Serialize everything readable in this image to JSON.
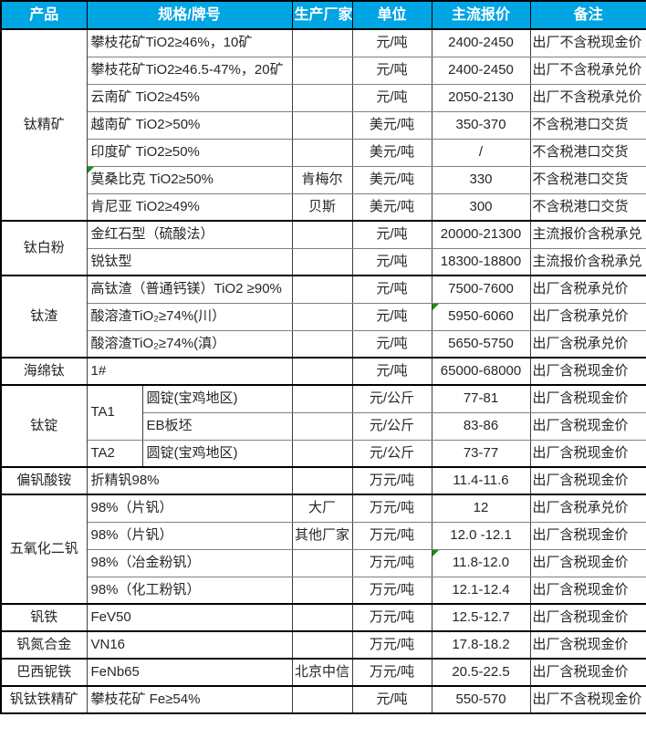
{
  "colors": {
    "header_bg": "#00A5E3",
    "header_text": "#FFFFFF",
    "marker_green": "#149414",
    "grid_strong": "#000000",
    "grid_light": "#7F7F7F",
    "text": "#262626"
  },
  "table": {
    "columns": [
      "产品",
      "规格/牌号",
      "生产厂家",
      "单位",
      "主流报价",
      "备注"
    ],
    "groups": [
      {
        "product": "钛精矿",
        "rows": [
          {
            "spec": "攀枝花矿TiO2≥46%，10矿",
            "maker": "",
            "unit": "元/吨",
            "price": "2400-2450",
            "note": "出厂不含税现金价"
          },
          {
            "spec": "攀枝花矿TiO2≥46.5-47%，20矿",
            "maker": "",
            "unit": "元/吨",
            "price": "2400-2450",
            "note": "出厂不含税承兑价"
          },
          {
            "spec": "云南矿 TiO2≥45%",
            "maker": "",
            "unit": "元/吨",
            "price": "2050-2130",
            "note": "出厂不含税承兑价"
          },
          {
            "spec": "越南矿 TiO2>50%",
            "maker": "",
            "unit": "美元/吨",
            "price": "350-370",
            "note": "不含税港口交货"
          },
          {
            "spec": "印度矿 TiO2≥50%",
            "maker": "",
            "unit": "美元/吨",
            "price": "/",
            "note": "不含税港口交货"
          },
          {
            "spec": "莫桑比克 TiO2≥50%",
            "maker": "肯梅尔",
            "unit": "美元/吨",
            "price": "330",
            "note": "不含税港口交货",
            "spec_marker": true
          },
          {
            "spec": "肯尼亚 TiO2≥49%",
            "maker": "贝斯",
            "unit": "美元/吨",
            "price": "300",
            "note": "不含税港口交货"
          }
        ]
      },
      {
        "product": "钛白粉",
        "rows": [
          {
            "spec": "金红石型（硫酸法）",
            "maker": "",
            "unit": "元/吨",
            "price": "20000-21300",
            "note": "主流报价含税承兑"
          },
          {
            "spec": "锐钛型",
            "maker": "",
            "unit": "元/吨",
            "price": "18300-18800",
            "note": "主流报价含税承兑"
          }
        ]
      },
      {
        "product": "钛渣",
        "rows": [
          {
            "spec": "高钛渣（普通钙镁）TiO2 ≥90%",
            "maker": "",
            "unit": "元/吨",
            "price": "7500-7600",
            "note": "出厂含税承兑价"
          },
          {
            "spec": "酸溶渣TiO₂≥74%(川）",
            "maker": "",
            "unit": "元/吨",
            "price": "5950-6060",
            "note": "出厂含税承兑价",
            "price_marker": true
          },
          {
            "spec": "酸溶渣TiO₂≥74%(滇）",
            "maker": "",
            "unit": "元/吨",
            "price": "5650-5750",
            "note": "出厂含税承兑价"
          }
        ]
      },
      {
        "product": "海绵钛",
        "rows": [
          {
            "spec": "1#",
            "maker": "",
            "unit": "元/吨",
            "price": "65000-68000",
            "note": "出厂含税现金价"
          }
        ]
      },
      {
        "product": "钛锭",
        "rows": [
          {
            "spec_group": "TA1",
            "spec_group_rowspan": 2,
            "spec": "圆锭(宝鸡地区)",
            "maker": "",
            "unit": "元/公斤",
            "price": "77-81",
            "note": "出厂含税现金价"
          },
          {
            "in_split": true,
            "spec": "EB板坯",
            "maker": "",
            "unit": "元/公斤",
            "price": "83-86",
            "note": "出厂含税现金价"
          },
          {
            "spec_group": "TA2",
            "spec_group_rowspan": 1,
            "spec": "圆锭(宝鸡地区)",
            "maker": "",
            "unit": "元/公斤",
            "price": "73-77",
            "note": "出厂含税现金价"
          }
        ]
      },
      {
        "product": "偏钒酸铵",
        "rows": [
          {
            "spec": "折精钒98%",
            "maker": "",
            "unit": "万元/吨",
            "price": "11.4-11.6",
            "note": "出厂含税现金价"
          }
        ]
      },
      {
        "product": "五氧化二钒",
        "rows": [
          {
            "spec": "98%（片钒）",
            "maker": "大厂",
            "unit": "万元/吨",
            "price": "12",
            "note": "出厂含税承兑价"
          },
          {
            "spec": "98%（片钒）",
            "maker": "其他厂家",
            "unit": "万元/吨",
            "price": "12.0 -12.1",
            "note": "出厂含税现金价"
          },
          {
            "spec": "98%（冶金粉钒）",
            "maker": "",
            "unit": "万元/吨",
            "price": "11.8-12.0",
            "note": "出厂含税现金价",
            "price_marker": true
          },
          {
            "spec": "98%（化工粉钒）",
            "maker": "",
            "unit": "万元/吨",
            "price": "12.1-12.4",
            "note": "出厂含税现金价"
          }
        ]
      },
      {
        "product": "钒铁",
        "rows": [
          {
            "spec": "FeV50",
            "maker": "",
            "unit": "万元/吨",
            "price": "12.5-12.7",
            "note": "出厂含税现金价"
          }
        ]
      },
      {
        "product": "钒氮合金",
        "rows": [
          {
            "spec": "VN16",
            "maker": "",
            "unit": "万元/吨",
            "price": "17.8-18.2",
            "note": "出厂含税现金价"
          }
        ]
      },
      {
        "product": "巴西铌铁",
        "rows": [
          {
            "spec": "FeNb65",
            "maker": "北京中信",
            "unit": "万元/吨",
            "price": "20.5-22.5",
            "note": "出厂含税现金价"
          }
        ]
      },
      {
        "product": "钒钛铁精矿",
        "rows": [
          {
            "spec": "攀枝花矿 Fe≥54%",
            "maker": "",
            "unit": "元/吨",
            "price": "550-570",
            "note": "出厂不含税现金价"
          }
        ]
      }
    ]
  }
}
